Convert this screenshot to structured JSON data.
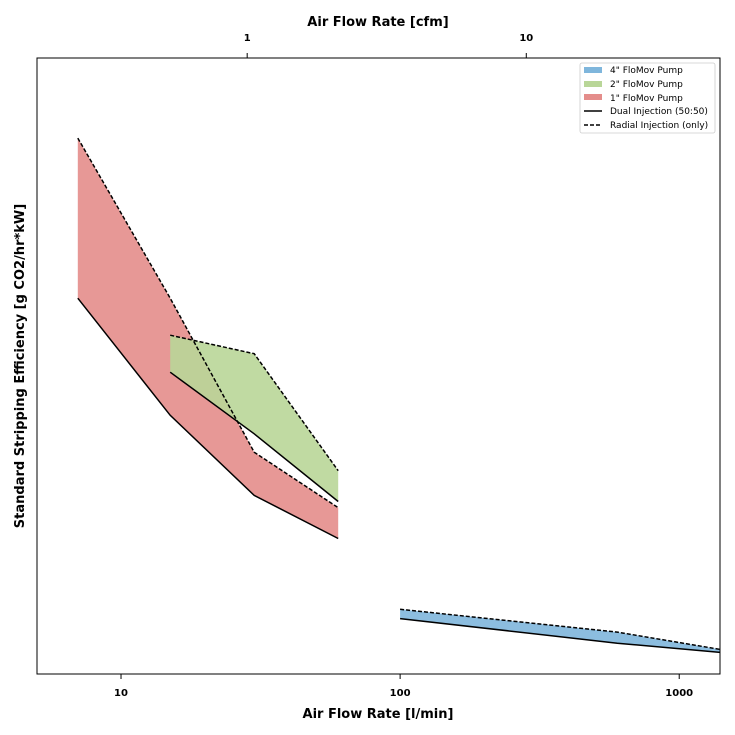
{
  "chart_data": {
    "type": "area",
    "xlabel": "Air Flow Rate [l/min]",
    "x2label": "Air Flow Rate [cfm]",
    "ylabel": "Standard Stripping Efficiency [g CO2/hr*kW]",
    "x_scale": "log",
    "xlim": [
      5,
      1400
    ],
    "x_ticks": [
      10,
      100,
      1000
    ],
    "x_tick_labels": [
      "10",
      "100",
      "1000"
    ],
    "x2_ticks": [
      1,
      10
    ],
    "x2_tick_labels": [
      "1",
      "10"
    ],
    "y_ticks_shown": false,
    "ylim": [
      0,
      100
    ],
    "grid": false,
    "legend": {
      "placement": "top-right",
      "entries": [
        {
          "label": "4\" FloMov Pump",
          "kind": "patch",
          "color": "#7fb6dc"
        },
        {
          "label": "2\" FloMov Pump",
          "kind": "patch",
          "color": "#b9d698"
        },
        {
          "label": "1\" FloMov Pump",
          "kind": "patch",
          "color": "#e48d8b"
        },
        {
          "label": "Dual Injection (50:50)",
          "kind": "line",
          "style": "solid"
        },
        {
          "label": "Radial Injection (only)",
          "kind": "line",
          "style": "dashed"
        }
      ]
    },
    "series": [
      {
        "name": "1\" FloMov Pump",
        "color": "#e48d8b",
        "radial": {
          "x": [
            7,
            15,
            30,
            60
          ],
          "y": [
            87,
            61,
            36,
            27
          ]
        },
        "dual": {
          "x": [
            7,
            15,
            30,
            60
          ],
          "y": [
            61,
            42,
            29,
            22
          ]
        }
      },
      {
        "name": "2\" FloMov Pump",
        "color": "#b9d698",
        "radial": {
          "x": [
            15,
            30,
            60
          ],
          "y": [
            55,
            52,
            33
          ]
        },
        "dual": {
          "x": [
            15,
            30,
            60
          ],
          "y": [
            49,
            39,
            28
          ]
        }
      },
      {
        "name": "4\" FloMov Pump",
        "color": "#7fb6dc",
        "radial": {
          "x": [
            100,
            600,
            1400
          ],
          "y": [
            10.5,
            6.8,
            4
          ]
        },
        "dual": {
          "x": [
            100,
            600,
            1400
          ],
          "y": [
            9,
            5,
            3.5
          ]
        }
      }
    ]
  }
}
